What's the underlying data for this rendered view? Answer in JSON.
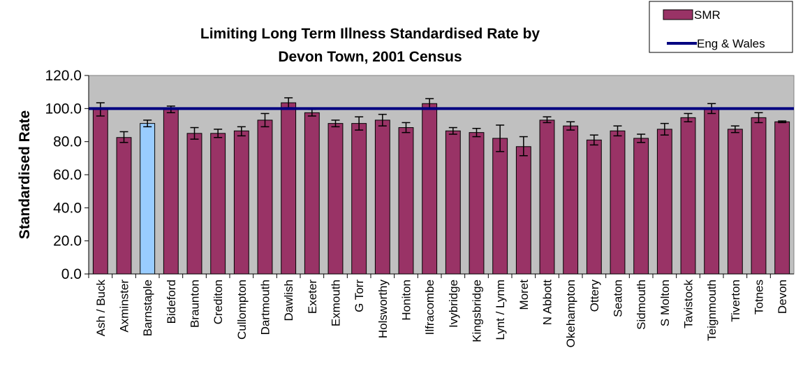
{
  "chart_data": {
    "type": "bar",
    "title_line1": "Limiting Long Term Illness Standardised Rate by",
    "title_line2": "Devon Town, 2001 Census",
    "xlabel": "",
    "ylabel": "Standardised Rate",
    "ylim": [
      0,
      120
    ],
    "yticks": [
      "0.0",
      "20.0",
      "40.0",
      "60.0",
      "80.0",
      "100.0",
      "120.0"
    ],
    "grid": false,
    "legend_position": "top-right",
    "categories": [
      "Ash / Buck",
      "Axminster",
      "Barnstaple",
      "Bideford",
      "Braunton",
      "Crediton",
      "Cullompton",
      "Dartmouth",
      "Dawlish",
      "Exeter",
      "Exmouth",
      "G Torr",
      "Holsworthy",
      "Honiton",
      "Ilfracombe",
      "Ivybridge",
      "Kingsbridge",
      "Lynt / Lynm",
      "Moret",
      "N Abbott",
      "Okehampton",
      "Ottery",
      "Seaton",
      "Sidmouth",
      "S Molton",
      "Tavistock",
      "Teignmouth",
      "Tiverton",
      "Totnes",
      "Devon"
    ],
    "series": [
      {
        "name": "SMR",
        "color": "#993366",
        "highlight_color": "#99CCFF",
        "highlight_category": "Barnstaple",
        "values": [
          99.5,
          82.5,
          91.0,
          99.5,
          85.0,
          85.0,
          86.5,
          93.0,
          103.5,
          97.5,
          91.0,
          91.0,
          93.0,
          88.5,
          103.0,
          86.5,
          85.5,
          82.0,
          77.0,
          93.0,
          89.5,
          81.0,
          86.5,
          82.0,
          87.5,
          94.5,
          100.0,
          87.5,
          94.5,
          92.0
        ],
        "error_low": [
          95.5,
          79.5,
          89.0,
          97.5,
          81.5,
          82.5,
          83.5,
          89.0,
          100.5,
          95.5,
          89.0,
          87.0,
          89.5,
          85.5,
          100.0,
          84.5,
          83.0,
          74.0,
          71.5,
          91.5,
          87.0,
          78.0,
          83.5,
          79.5,
          84.0,
          92.0,
          97.0,
          85.5,
          91.5,
          91.5
        ],
        "error_high": [
          103.5,
          86.0,
          93.0,
          101.5,
          88.5,
          87.5,
          89.0,
          97.0,
          106.5,
          99.5,
          93.0,
          95.0,
          96.5,
          91.5,
          106.0,
          88.5,
          88.0,
          90.0,
          83.0,
          95.0,
          92.0,
          84.0,
          89.5,
          84.5,
          91.0,
          97.0,
          103.0,
          89.5,
          97.5,
          92.5
        ]
      },
      {
        "name": "Eng & Wales",
        "type": "line",
        "color": "#000080",
        "value": 100.0
      }
    ],
    "plot_background": "#C0C0C0"
  }
}
